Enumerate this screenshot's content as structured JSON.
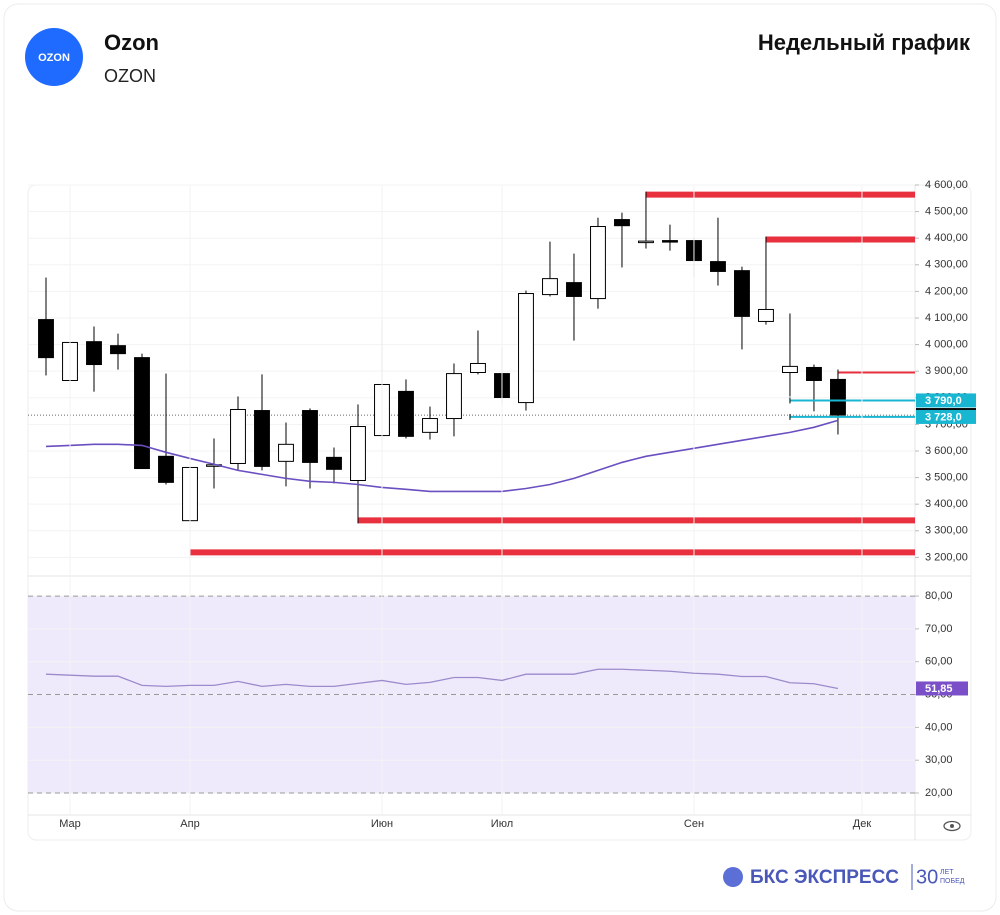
{
  "header": {
    "logo": "OZON",
    "title": "Ozon",
    "ticker": "OZON",
    "chart_label": "Недельный график"
  },
  "footer": {
    "brand": "БКС ЭКСПРЕСС",
    "badge": "30",
    "badge_line1": "ЛЕТ",
    "badge_line2": "ПОБЕД"
  },
  "chart_data": [
    {
      "type": "candlestick",
      "x": [
        0,
        1,
        2,
        3,
        4,
        5,
        6,
        7,
        8,
        9,
        10,
        11,
        12,
        13,
        14,
        15,
        16,
        17,
        18,
        19,
        20,
        21,
        22,
        23,
        24,
        25,
        26,
        27,
        28,
        29,
        30,
        31,
        32,
        33
      ],
      "open": [
        4094,
        3865,
        4011,
        3996,
        3951,
        3580,
        3338,
        3545,
        3553,
        3752,
        3561,
        3752,
        3576,
        3489,
        3658,
        3824,
        3670,
        3722,
        3895,
        3891,
        3782,
        4188,
        4233,
        4173,
        4470,
        4385,
        4391,
        4391,
        4312,
        4278,
        4087,
        3895,
        3914,
        3869
      ],
      "high": [
        4252,
        4105,
        4068,
        4041,
        3966,
        3891,
        3640,
        3647,
        3805,
        3888,
        3707,
        3760,
        3613,
        3775,
        4090,
        3869,
        3767,
        3929,
        4053,
        3989,
        4203,
        4387,
        4342,
        4477,
        4496,
        4568,
        4451,
        4402,
        4477,
        4293,
        4399,
        4117,
        3925,
        3895
      ],
      "low": [
        3884,
        3823,
        3823,
        3906,
        3534,
        3474,
        3207,
        3459,
        3527,
        3527,
        3467,
        3459,
        3478,
        3335,
        3640,
        3647,
        3643,
        3655,
        3888,
        3779,
        3752,
        4181,
        4015,
        4135,
        4290,
        4361,
        4353,
        4252,
        4222,
        3982,
        4075,
        3805,
        3749,
        3662
      ],
      "close": [
        3951,
        4008,
        3925,
        3966,
        3534,
        3482,
        3538,
        3548,
        3756,
        3542,
        3625,
        3557,
        3531,
        3692,
        3850,
        3655,
        3722,
        3891,
        3929,
        3801,
        4192,
        4248,
        4181,
        4444,
        4447,
        4389,
        4387,
        4316,
        4275,
        4106,
        4132,
        3918,
        3865,
        3735
      ],
      "up_color": "#ffffff",
      "down_color": "#000000",
      "ma": {
        "color": "#6a4fc0",
        "values": [
          3617,
          3621,
          3625,
          3625,
          3621,
          3595,
          3572,
          3550,
          3527,
          3512,
          3497,
          3486,
          3482,
          3474,
          3463,
          3456,
          3448,
          3448,
          3448,
          3448,
          3459,
          3474,
          3497,
          3527,
          3557,
          3580,
          3595,
          3610,
          3625,
          3640,
          3655,
          3670,
          3689,
          3715
        ]
      },
      "levels": [
        {
          "value": 4564,
          "from": 25,
          "color": "#e8303f",
          "weight": "thick"
        },
        {
          "value": 4395,
          "from": 30,
          "color": "#e8303f",
          "weight": "thick"
        },
        {
          "value": 3895,
          "from": 33,
          "color": "#e8303f",
          "weight": "thin"
        },
        {
          "value": 3339,
          "from": 13,
          "color": "#e8303f",
          "weight": "thick"
        },
        {
          "value": 3219,
          "from": 6,
          "color": "#e8303f",
          "weight": "thick"
        },
        {
          "value": 3790,
          "from": 31,
          "color": "#19b6d2",
          "weight": "thin"
        },
        {
          "value": 3728,
          "from": 31,
          "color": "#19b6d2",
          "weight": "thin"
        }
      ],
      "price_labels": [
        {
          "value": 3790,
          "label": "3 790,0",
          "color": "#19b6d2"
        },
        {
          "value": 3735,
          "label": "3 735,0",
          "color": "#000000"
        },
        {
          "value": 3728,
          "label": "3 728,0",
          "color": "#19b6d2"
        }
      ],
      "xlim": [
        -0.75,
        36.21
      ],
      "ylim": [
        3145,
        4600
      ],
      "yticks": [
        {
          "value": 3200,
          "label": "3 200,00"
        },
        {
          "value": 3300,
          "label": "3 300,00"
        },
        {
          "value": 3400,
          "label": "3 400,00"
        },
        {
          "value": 3500,
          "label": "3 500,00"
        },
        {
          "value": 3600,
          "label": "3 600,00"
        },
        {
          "value": 3700,
          "label": "3 700,00"
        },
        {
          "value": 3800,
          "label": "3 800,00"
        },
        {
          "value": 3900,
          "label": "3 900,00"
        },
        {
          "value": 4000,
          "label": "4 000,00"
        },
        {
          "value": 4100,
          "label": "4 100,00"
        },
        {
          "value": 4200,
          "label": "4 200,00"
        },
        {
          "value": 4300,
          "label": "4 300,00"
        },
        {
          "value": 4400,
          "label": "4 400,00"
        },
        {
          "value": 4500,
          "label": "4 500,00"
        },
        {
          "value": 4600,
          "label": "4 600,00"
        }
      ],
      "grid": true
    },
    {
      "type": "line",
      "color": "#9b8bcc",
      "x": [
        0,
        1,
        2,
        3,
        4,
        5,
        6,
        7,
        8,
        9,
        10,
        11,
        12,
        13,
        14,
        15,
        16,
        17,
        18,
        19,
        20,
        21,
        22,
        23,
        24,
        25,
        26,
        27,
        28,
        29,
        30,
        31,
        32,
        33
      ],
      "values": [
        56.2,
        55.9,
        55.6,
        55.6,
        52.8,
        52.5,
        52.8,
        52.8,
        54.0,
        52.5,
        53.1,
        52.5,
        52.5,
        53.4,
        54.3,
        53.1,
        53.7,
        55.2,
        55.2,
        54.3,
        56.2,
        56.2,
        56.2,
        57.7,
        57.7,
        57.4,
        57.1,
        56.5,
        56.2,
        55.5,
        55.5,
        53.6,
        53.3,
        51.85
      ],
      "value_labels": [
        null,
        null,
        null,
        null,
        null,
        null,
        null,
        null,
        null,
        null,
        null,
        null,
        null,
        null,
        null,
        null,
        null,
        null,
        null,
        null,
        null,
        null,
        null,
        null,
        null,
        null,
        null,
        null,
        null,
        null,
        null,
        null,
        null,
        "51,85"
      ],
      "label_color": "#7a4fc8",
      "band": [
        20,
        80
      ],
      "band_color": "#efeafb",
      "dashed": [
        20,
        50,
        80
      ],
      "xlim": [
        -0.75,
        36.21
      ],
      "ylim": [
        13.3,
        84.9
      ],
      "yticks": [
        {
          "value": 20,
          "label": "20,00"
        },
        {
          "value": 30,
          "label": "30,00"
        },
        {
          "value": 40,
          "label": "40,00"
        },
        {
          "value": 50,
          "label": "50,00"
        },
        {
          "value": 60,
          "label": "60,00"
        },
        {
          "value": 70,
          "label": "70,00"
        },
        {
          "value": 80,
          "label": "80,00"
        }
      ],
      "xticks": [
        {
          "value": 1,
          "label": "Мар"
        },
        {
          "value": 6,
          "label": "Апр"
        },
        {
          "value": 14,
          "label": "Июн"
        },
        {
          "value": 19,
          "label": "Июл"
        },
        {
          "value": 27,
          "label": "Сен"
        },
        {
          "value": 34,
          "label": "Дек"
        }
      ],
      "grid": true
    }
  ]
}
